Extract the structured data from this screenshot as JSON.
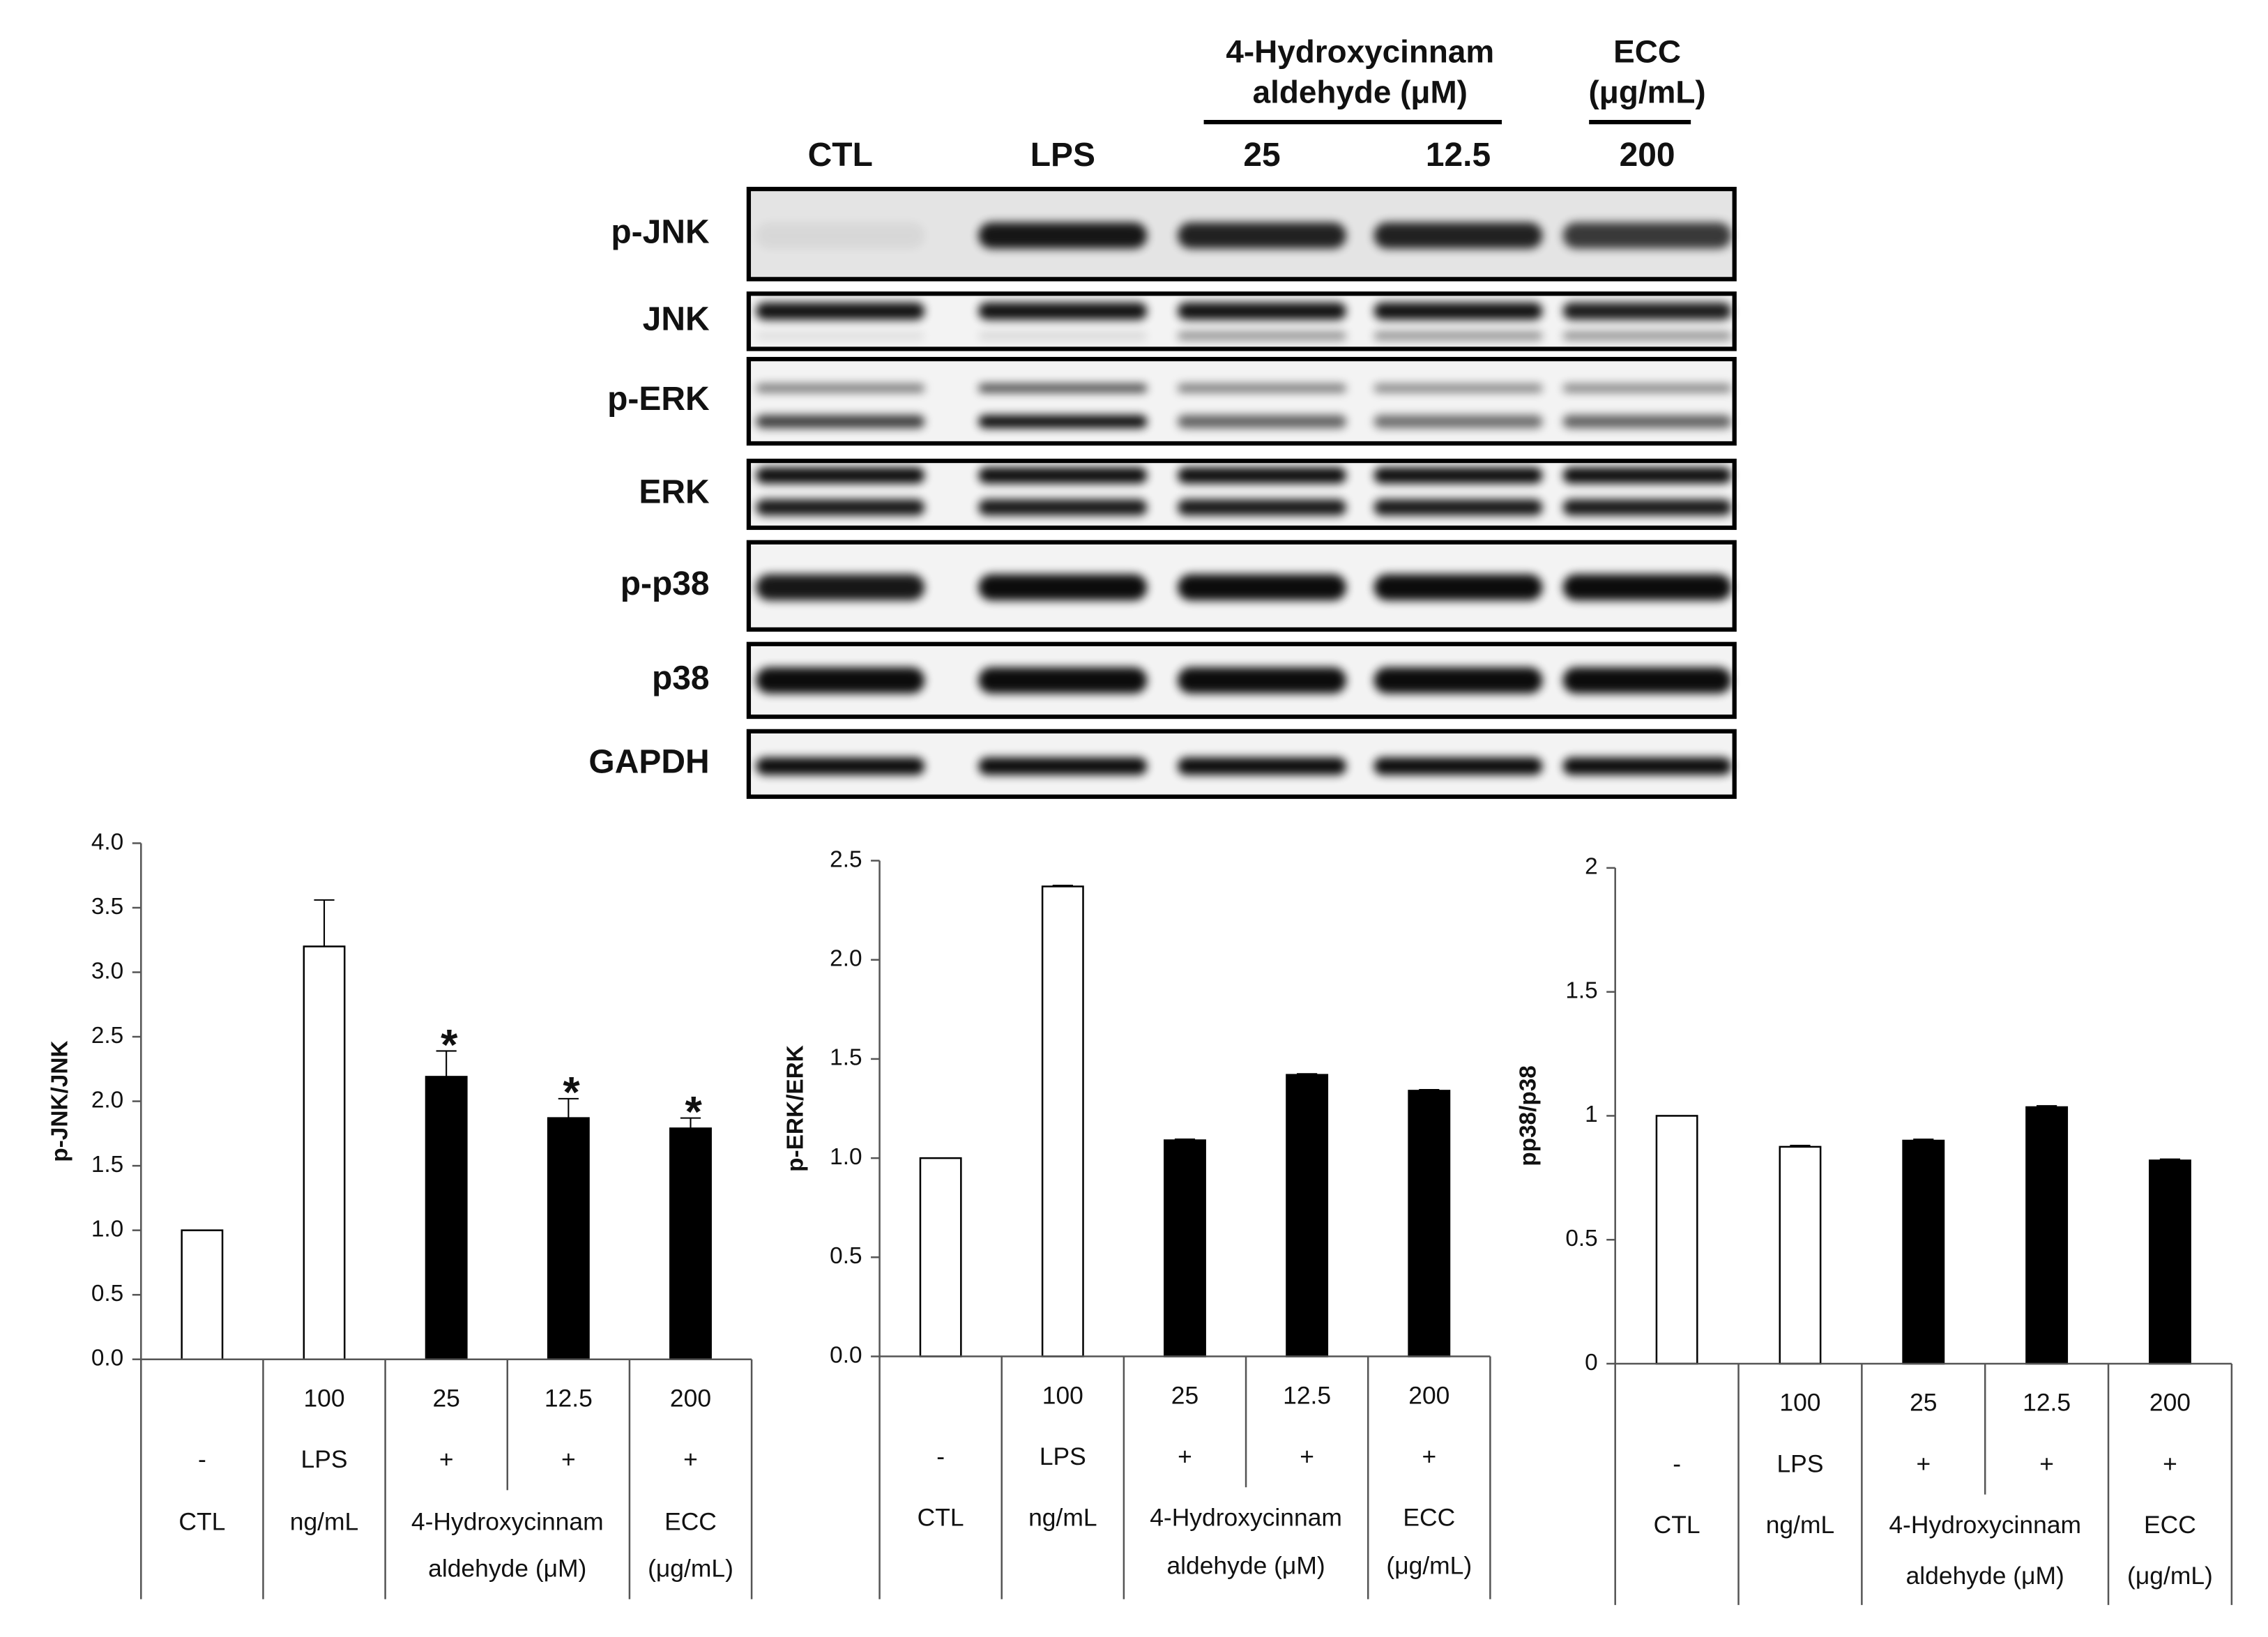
{
  "blot": {
    "lanes": [
      "CTL",
      "LPS",
      "25",
      "12.5",
      "200"
    ],
    "groups": [
      {
        "lines": [
          "4-Hydroxycinnam",
          "aldehyde (μM)"
        ],
        "columns": [
          2,
          3
        ]
      },
      {
        "lines": [
          "ECC",
          "(μg/mL)"
        ],
        "columns": [
          4
        ]
      }
    ],
    "rows": [
      "p-JNK",
      "JNK",
      "p-ERK",
      "ERK",
      "p-p38",
      "p38",
      "GAPDH"
    ]
  },
  "chart_data": [
    {
      "type": "bar",
      "y_label": "p-JNK/JNK",
      "values": [
        1.0,
        3.2,
        2.19,
        1.87,
        1.79
      ],
      "errors": [
        0,
        0.36,
        0.2,
        0.15,
        0.08
      ],
      "colors": [
        "#ffffff",
        "#ffffff",
        "#000000",
        "#000000",
        "#000000"
      ],
      "annotations": [
        null,
        null,
        "*",
        "*",
        "*"
      ],
      "ylim": [
        0,
        4
      ],
      "yticks": [
        {
          "value": 0,
          "label": "0.0"
        },
        0.5,
        {
          "value": 1,
          "label": "1.0"
        },
        1.5,
        {
          "value": 2,
          "label": "2.0"
        },
        2.5,
        {
          "value": 3,
          "label": "3.0"
        },
        3.5,
        {
          "value": 4,
          "label": "4.0"
        }
      ],
      "table": {
        "dose": [
          null,
          "100",
          "25",
          "12.5",
          "200"
        ],
        "treatment": [
          "-",
          "LPS",
          "+",
          "+",
          "+"
        ],
        "groups": [
          {
            "lines": [
              "CTL"
            ],
            "columns": [
              0
            ]
          },
          {
            "lines": [
              "ng/mL"
            ],
            "columns": [
              1
            ]
          },
          {
            "lines": [
              "4-Hydroxycinnam",
              "aldehyde (μM)"
            ],
            "columns": [
              2,
              3
            ]
          },
          {
            "lines": [
              "ECC",
              "(μg/mL)"
            ],
            "columns": [
              4
            ]
          }
        ]
      }
    },
    {
      "type": "bar",
      "y_label": "p-ERK/ERK",
      "values": [
        1.0,
        2.37,
        1.09,
        1.42,
        1.34
      ],
      "errors": [
        0,
        0.005,
        0.005,
        0.005,
        0.005
      ],
      "colors": [
        "#ffffff",
        "#ffffff",
        "#000000",
        "#000000",
        "#000000"
      ],
      "ylim": [
        0,
        2.5
      ],
      "yticks": [
        {
          "value": 0,
          "label": "0.0"
        },
        0.5,
        {
          "value": 1,
          "label": "1.0"
        },
        1.5,
        {
          "value": 2,
          "label": "2.0"
        },
        2.5
      ],
      "table": {
        "dose": [
          null,
          "100",
          "25",
          "12.5",
          "200"
        ],
        "treatment": [
          "-",
          "LPS",
          "+",
          "+",
          "+"
        ],
        "groups": [
          {
            "lines": [
              "CTL"
            ],
            "columns": [
              0
            ]
          },
          {
            "lines": [
              "ng/mL"
            ],
            "columns": [
              1
            ]
          },
          {
            "lines": [
              "4-Hydroxycinnam",
              "aldehyde (μM)"
            ],
            "columns": [
              2,
              3
            ]
          },
          {
            "lines": [
              "ECC",
              "(μg/mL)"
            ],
            "columns": [
              4
            ]
          }
        ]
      }
    },
    {
      "type": "bar",
      "y_label": "pp38/p38",
      "values": [
        1.0,
        0.875,
        0.9,
        1.035,
        0.82
      ],
      "errors": [
        0,
        0.005,
        0.005,
        0.005,
        0.005
      ],
      "colors": [
        "#ffffff",
        "#ffffff",
        "#000000",
        "#000000",
        "#000000"
      ],
      "ylim": [
        0,
        2
      ],
      "yticks": [
        0,
        0.5,
        1,
        1.5,
        2
      ],
      "table": {
        "dose": [
          null,
          "100",
          "25",
          "12.5",
          "200"
        ],
        "treatment": [
          "-",
          "LPS",
          "+",
          "+",
          "+"
        ],
        "groups": [
          {
            "lines": [
              "CTL"
            ],
            "columns": [
              0
            ]
          },
          {
            "lines": [
              "ng/mL"
            ],
            "columns": [
              1
            ]
          },
          {
            "lines": [
              "4-Hydroxycinnam",
              "aldehyde (μM)"
            ],
            "columns": [
              2,
              3
            ]
          },
          {
            "lines": [
              "ECC",
              "(μg/mL)"
            ],
            "columns": [
              4
            ]
          }
        ]
      }
    }
  ]
}
